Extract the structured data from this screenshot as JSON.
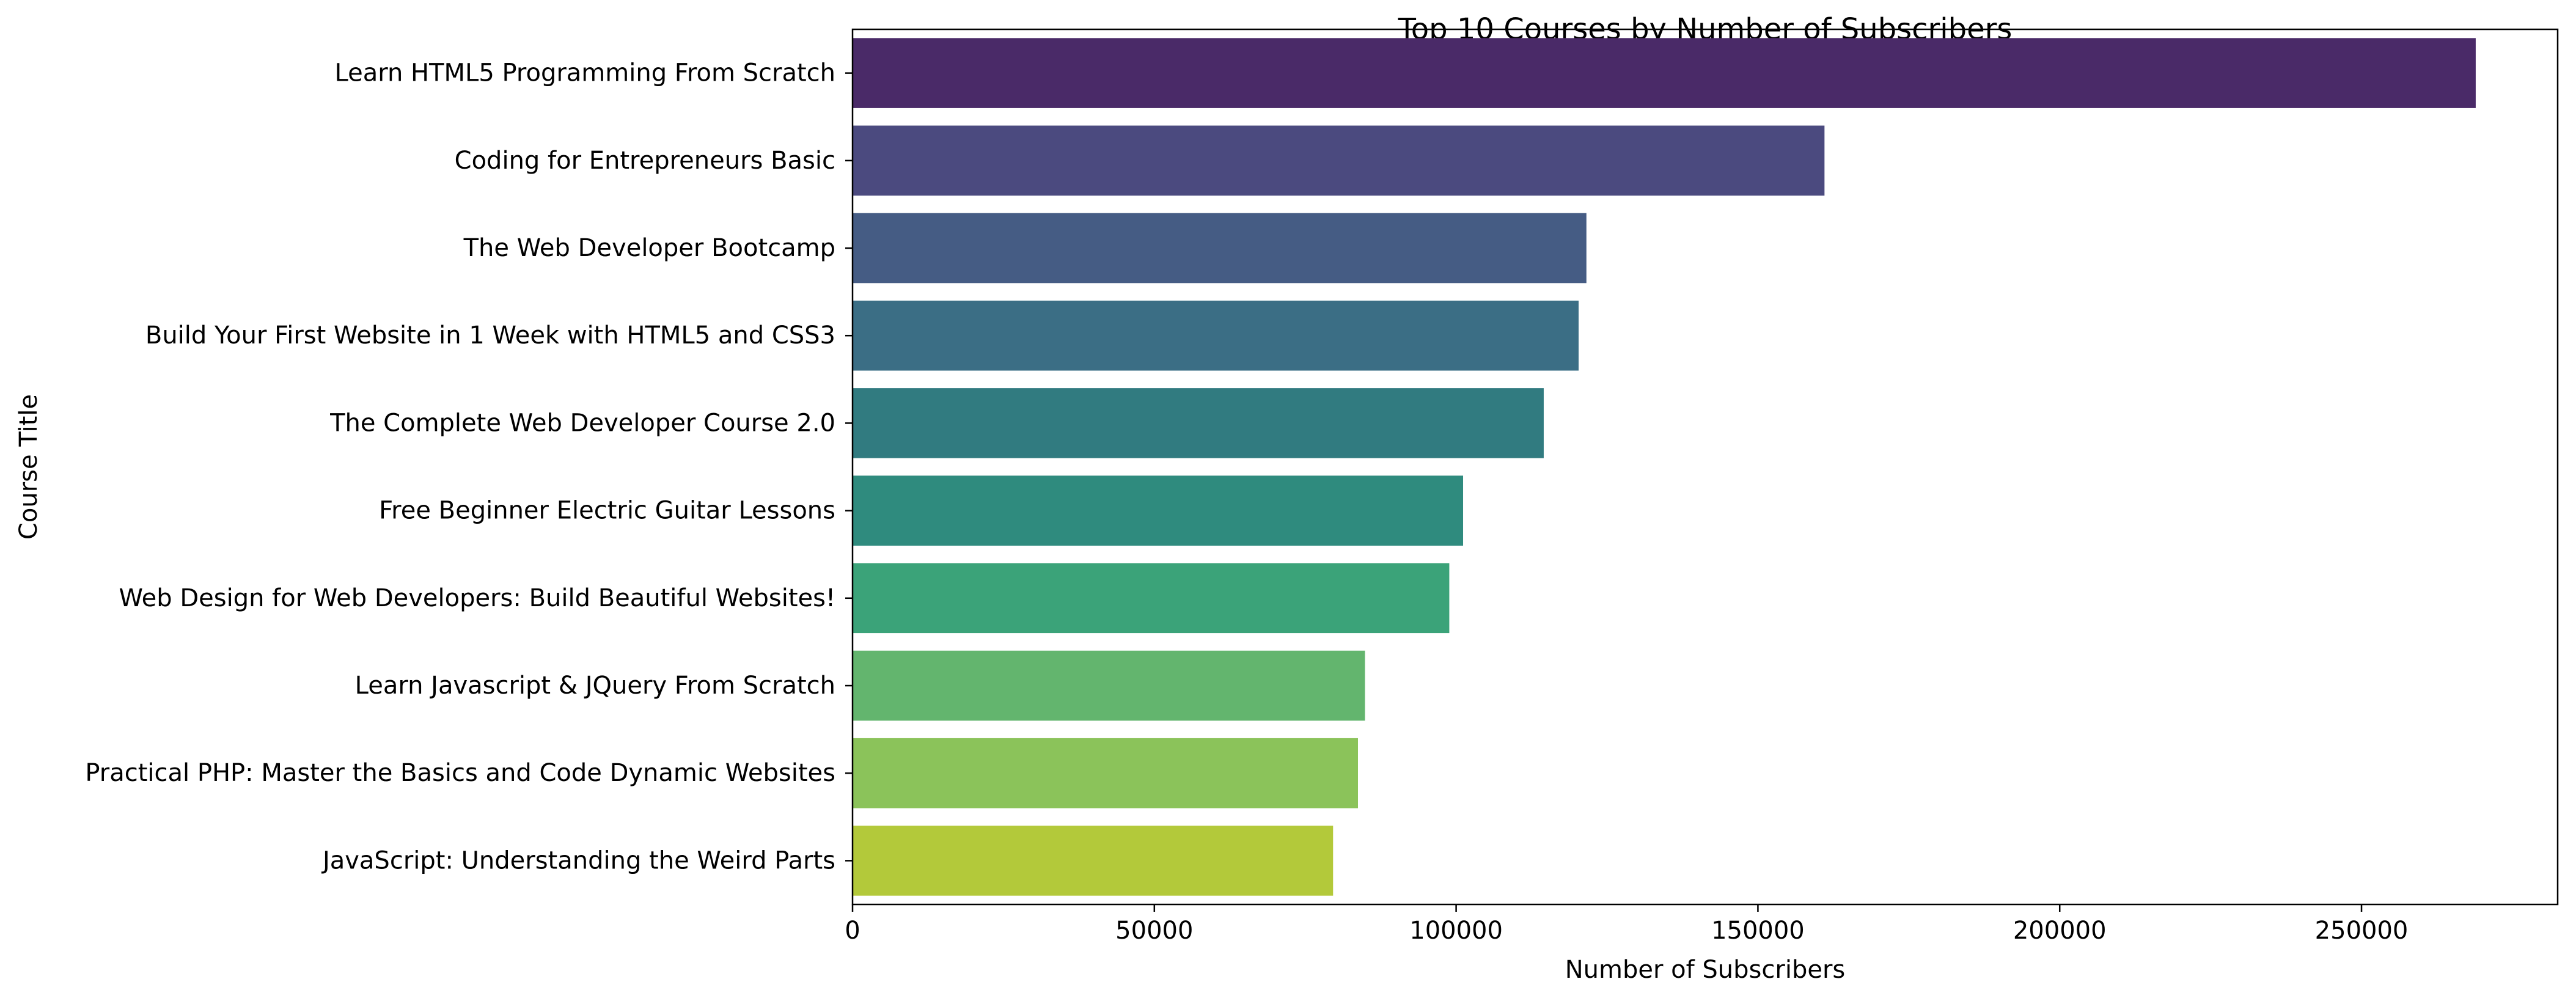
{
  "chart_data": {
    "type": "bar",
    "orientation": "horizontal",
    "title": "Top 10 Courses by Number of Subscribers",
    "xlabel": "Number of Subscribers",
    "ylabel": "Course Title",
    "xlim": [
      0,
      282500
    ],
    "xticks": [
      0,
      50000,
      100000,
      150000,
      200000,
      250000
    ],
    "grid": false,
    "legend": "none",
    "categories": [
      "Learn HTML5 Programming From Scratch",
      "Coding for Entrepreneurs Basic",
      "The Web Developer Bootcamp",
      "Build Your First Website in 1 Week with HTML5 and CSS3",
      "The Complete Web Developer Course 2.0",
      "Free Beginner Electric Guitar Lessons",
      "Web Design for Web Developers: Build Beautiful Websites!",
      "Learn Javascript & JQuery From Scratch",
      "Practical PHP: Master the Basics and Code Dynamic Websites",
      "JavaScript: Understanding the Weird Parts"
    ],
    "values": [
      268923,
      161029,
      121584,
      120291,
      114512,
      101154,
      98867,
      84897,
      83737,
      79612
    ],
    "colors": [
      "#4a2a68",
      "#4b4a7f",
      "#455c84",
      "#3b6e85",
      "#317b80",
      "#2f8b7e",
      "#3ba379",
      "#63b56e",
      "#8bc35a",
      "#b3c93a"
    ]
  }
}
